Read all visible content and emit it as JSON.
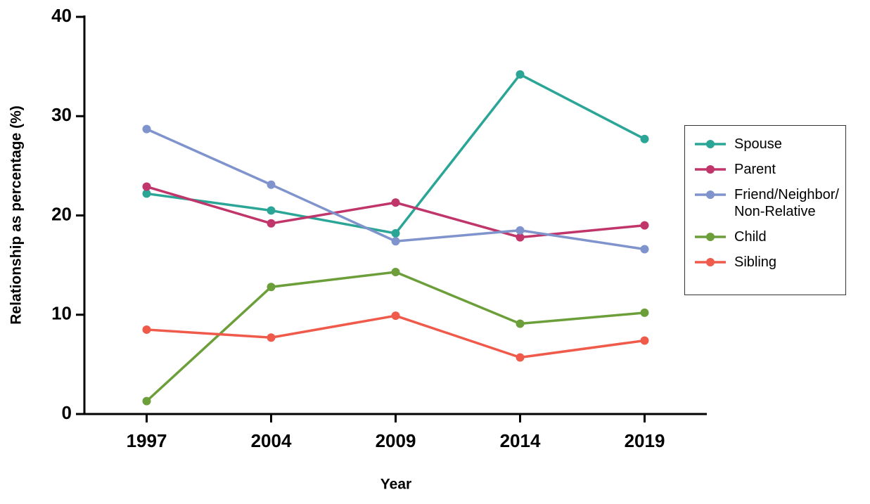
{
  "chart_data": {
    "type": "line",
    "x_label": "Year",
    "y_label": "Relationship as percentage (%)",
    "categories": [
      "1997",
      "2004",
      "2009",
      "2014",
      "2019"
    ],
    "series": [
      {
        "name": "Spouse",
        "color": "#2aa596",
        "values": [
          22.2,
          20.5,
          18.2,
          34.2,
          27.7
        ]
      },
      {
        "name": "Parent",
        "color": "#c0356a",
        "values": [
          22.9,
          19.2,
          21.3,
          17.8,
          19.0
        ]
      },
      {
        "name": "Friend/Neighbor/ Non-Relative",
        "color": "#7f93cc",
        "values": [
          28.7,
          23.1,
          17.4,
          18.5,
          16.6
        ]
      },
      {
        "name": "Child",
        "color": "#6c9f3a",
        "values": [
          1.3,
          12.8,
          14.3,
          9.1,
          10.2
        ]
      },
      {
        "name": "Sibling",
        "color": "#ef5a4b",
        "values": [
          8.5,
          7.7,
          9.9,
          5.7,
          7.4
        ]
      }
    ],
    "ylim": [
      0,
      40
    ],
    "yticks": [
      0,
      10,
      20,
      30,
      40
    ],
    "legend": "right"
  }
}
